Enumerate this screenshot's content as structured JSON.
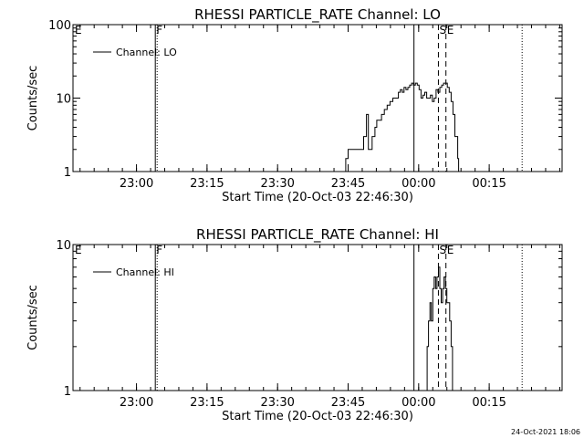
{
  "footer_stamp": "24-Oct-2021 18:06",
  "chart_data": [
    {
      "type": "line",
      "title": "RHESSI PARTICLE_RATE Channel: LO",
      "xlabel": "Start Time (20-Oct-03 22:46:30)",
      "ylabel": "Counts/sec",
      "y_scale": "log",
      "ylim": [
        1,
        100
      ],
      "y_ticks": [
        {
          "v": 1,
          "label": "1"
        },
        {
          "v": 10,
          "label": "10"
        },
        {
          "v": 100,
          "label": "100"
        }
      ],
      "x_unit": "minutes since 22:46:30",
      "xlim": [
        0,
        104
      ],
      "x_ticks": [
        {
          "t": 13.5,
          "label": "23:00"
        },
        {
          "t": 28.5,
          "label": "23:15"
        },
        {
          "t": 43.5,
          "label": "23:30"
        },
        {
          "t": 58.5,
          "label": "23:45"
        },
        {
          "t": 73.5,
          "label": "00:00"
        },
        {
          "t": 88.5,
          "label": "00:15"
        }
      ],
      "legend": {
        "label": "Channel: LO",
        "placement": "top-left"
      },
      "markers": [
        {
          "t": 0.2,
          "label": "E",
          "style": "none"
        },
        {
          "t": 17.5,
          "label": "F",
          "style": "solid-dotted"
        },
        {
          "t": 72.5,
          "label": "",
          "style": "solid"
        },
        {
          "t": 77.7,
          "label": "S",
          "style": "dashed"
        },
        {
          "t": 79.3,
          "label": "E",
          "style": "dashed"
        },
        {
          "t": 95.5,
          "label": "",
          "style": "dotted"
        }
      ],
      "series": [
        {
          "name": "Channel: LO",
          "x": [
            57.5,
            58.0,
            58.5,
            61.5,
            61.8,
            62.4,
            62.8,
            63.2,
            63.6,
            64.2,
            64.6,
            65.0,
            65.6,
            66.2,
            66.8,
            67.4,
            68.0,
            68.6,
            69.2,
            69.6,
            70.0,
            70.4,
            70.8,
            71.2,
            71.6,
            72.0,
            72.4,
            72.8,
            73.2,
            73.6,
            74.0,
            74.4,
            74.8,
            75.2,
            75.6,
            76.0,
            76.4,
            76.8,
            77.2,
            77.6,
            78.0,
            78.4,
            78.8,
            79.2,
            79.6,
            80.0,
            80.4,
            80.8,
            81.2,
            81.8,
            82.0
          ],
          "y": [
            1,
            1.5,
            2,
            2,
            3,
            6,
            2,
            2,
            3,
            4,
            5,
            5,
            6,
            7,
            8,
            9,
            10,
            10,
            12,
            13,
            12,
            14,
            13,
            14,
            15,
            16,
            15,
            16,
            15,
            13,
            10,
            11,
            12,
            10,
            10,
            11,
            9,
            10,
            13,
            12,
            14,
            15,
            16,
            16,
            14,
            12,
            9,
            6,
            3,
            1.5,
            1
          ]
        }
      ]
    },
    {
      "type": "line",
      "title": "RHESSI PARTICLE_RATE Channel: HI",
      "xlabel": "Start Time (20-Oct-03 22:46:30)",
      "ylabel": "Counts/sec",
      "y_scale": "log",
      "ylim": [
        1,
        10
      ],
      "y_ticks": [
        {
          "v": 1,
          "label": "1"
        },
        {
          "v": 10,
          "label": "10"
        }
      ],
      "x_unit": "minutes since 22:46:30",
      "xlim": [
        0,
        104
      ],
      "x_ticks": [
        {
          "t": 13.5,
          "label": "23:00"
        },
        {
          "t": 28.5,
          "label": "23:15"
        },
        {
          "t": 43.5,
          "label": "23:30"
        },
        {
          "t": 58.5,
          "label": "23:45"
        },
        {
          "t": 73.5,
          "label": "00:00"
        },
        {
          "t": 88.5,
          "label": "00:15"
        }
      ],
      "legend": {
        "label": "Channel: HI",
        "placement": "top-left"
      },
      "markers": [
        {
          "t": 0.2,
          "label": "E",
          "style": "none"
        },
        {
          "t": 17.5,
          "label": "F",
          "style": "solid-dotted"
        },
        {
          "t": 72.5,
          "label": "",
          "style": "solid"
        },
        {
          "t": 77.7,
          "label": "S",
          "style": "dashed"
        },
        {
          "t": 79.3,
          "label": "E",
          "style": "dashed"
        },
        {
          "t": 95.5,
          "label": "",
          "style": "dotted"
        }
      ],
      "series": [
        {
          "name": "Channel: HI",
          "x": [
            75.0,
            75.3,
            75.6,
            75.9,
            76.2,
            76.5,
            76.8,
            77.1,
            77.4,
            77.7,
            78.0,
            78.3,
            78.6,
            78.9,
            79.2,
            79.5,
            79.8,
            80.1,
            80.4,
            80.7
          ],
          "y": [
            1,
            2,
            3,
            4,
            3,
            5,
            6,
            5,
            6,
            7,
            5,
            4,
            5,
            6,
            5,
            4,
            4,
            3,
            2,
            1
          ]
        }
      ]
    }
  ]
}
